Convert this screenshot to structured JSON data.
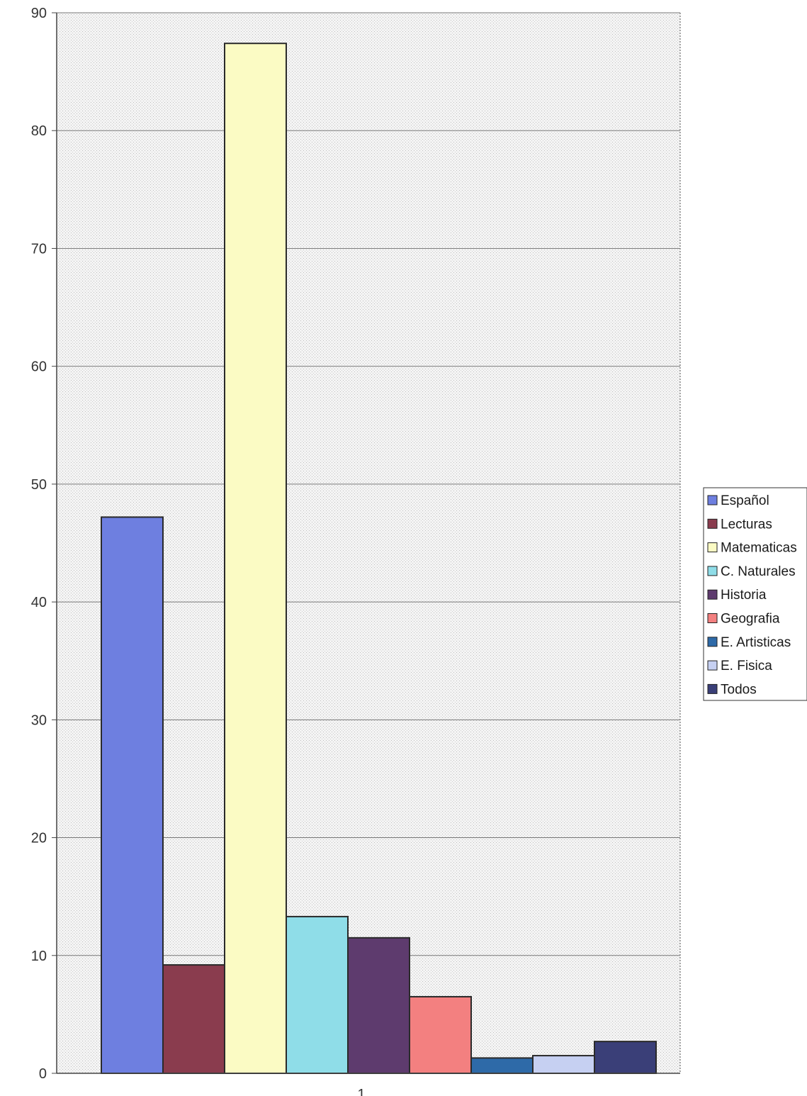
{
  "chart_data": {
    "type": "bar",
    "title": "",
    "xlabel": "",
    "ylabel": "",
    "categories": [
      "1"
    ],
    "ylim": [
      0,
      90
    ],
    "yticks": [
      0,
      10,
      20,
      30,
      40,
      50,
      60,
      70,
      80,
      90
    ],
    "grid": true,
    "legend_position": "right",
    "series": [
      {
        "name": "Español",
        "values": [
          47.2
        ],
        "color": "#6e7fe0"
      },
      {
        "name": "Lecturas",
        "values": [
          9.2
        ],
        "color": "#8a3c4e"
      },
      {
        "name": "Matematicas",
        "values": [
          87.4
        ],
        "color": "#fbfbc4"
      },
      {
        "name": "C. Naturales",
        "values": [
          13.3
        ],
        "color": "#8fdde8"
      },
      {
        "name": "Historia",
        "values": [
          11.5
        ],
        "color": "#5e3b6e"
      },
      {
        "name": "Geografia",
        "values": [
          6.5
        ],
        "color": "#f38080"
      },
      {
        "name": "E. Artisticas",
        "values": [
          1.3
        ],
        "color": "#2e6aa8"
      },
      {
        "name": "E. Fisica",
        "values": [
          1.5
        ],
        "color": "#c6d0f2"
      },
      {
        "name": "Todos",
        "values": [
          2.7
        ],
        "color": "#3a3f78"
      }
    ]
  }
}
